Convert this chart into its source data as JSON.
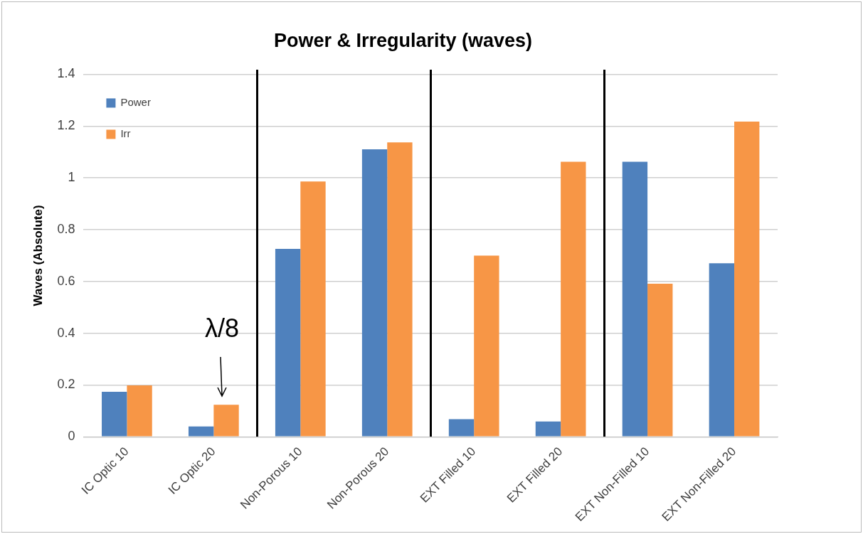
{
  "chart_data": {
    "type": "bar",
    "title": "Power & Irregularity (waves)",
    "ylabel": "Waves (Absolute)",
    "categories": [
      "IC Optic 10",
      "IC Optic 20",
      "Non-Porous 10",
      "Non-Porous 20",
      "EXT Filled 10",
      "EXT Filled 20",
      "EXT Non-Filled 10",
      "EXT Non-Filled 20"
    ],
    "series": [
      {
        "name": "Power",
        "color": "#4f81bd",
        "values": [
          0.174,
          0.04,
          0.726,
          1.11,
          0.068,
          0.059,
          1.062,
          0.67
        ]
      },
      {
        "name": "Irr",
        "color": "#f79646",
        "values": [
          0.199,
          0.124,
          0.986,
          1.137,
          0.7,
          1.062,
          0.591,
          1.217
        ]
      }
    ],
    "ylim": [
      0,
      1.4
    ],
    "yticks": [
      0,
      0.2,
      0.4,
      0.6,
      0.8,
      1,
      1.2,
      1.4
    ],
    "grid": "y",
    "legend": "top left",
    "annotations": [
      {
        "text": "λ/8",
        "x": "IC Optic 20",
        "y": 0.124
      }
    ]
  }
}
